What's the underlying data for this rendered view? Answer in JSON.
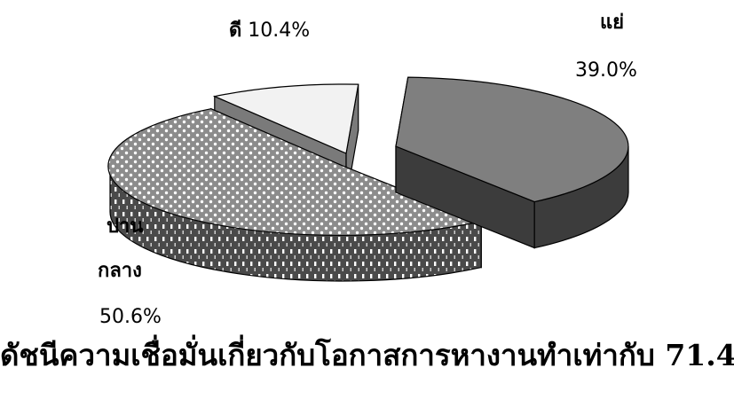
{
  "chart_data": {
    "type": "pie",
    "style": "3d-exploded",
    "categories": [
      "แย่",
      "ปานกลาง",
      "ดี"
    ],
    "values": [
      39.0,
      50.6,
      10.4
    ],
    "value_labels": [
      "39.0%",
      "50.6%",
      "10.4%"
    ],
    "label_lines": {
      "poor": "แย่",
      "medium_1": "ปาน",
      "medium_2": "กลาง",
      "good": "ดี"
    },
    "fills": [
      "dark-gray-solid",
      "dotted-pattern",
      "light-gray-solid"
    ],
    "colors": [
      "#7f7f7f",
      "#9a9a9a",
      "#f2f2f2"
    ],
    "legend": "none",
    "grid": false
  },
  "caption": "ดัชนีความเชื่อมั่นเกี่ยวกับโอกาสการหางานทำเท่ากับ 71.4"
}
